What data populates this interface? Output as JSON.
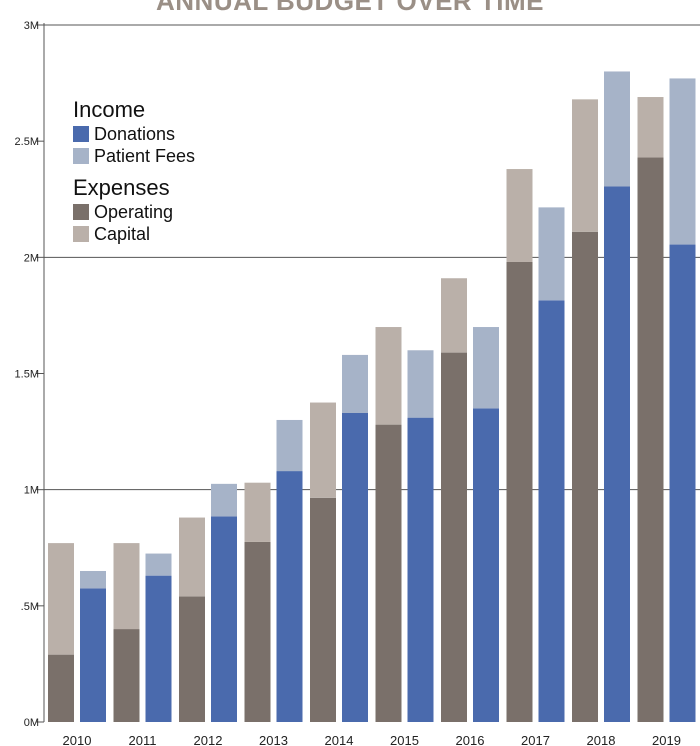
{
  "chart_data": {
    "type": "bar",
    "title": "ANNUAL BUDGET OVER TIME",
    "xlabel": "",
    "ylabel": "",
    "ylim": [
      0,
      3000000
    ],
    "grid": true,
    "legend_position": "top-left",
    "categories": [
      "2010",
      "2011",
      "2012",
      "2013",
      "2014",
      "2015",
      "2016",
      "2017",
      "2018",
      "2019"
    ],
    "y_ticks": [
      {
        "value": 0,
        "label": "0M"
      },
      {
        "value": 500000,
        "label": ".5M"
      },
      {
        "value": 1000000,
        "label": "1M"
      },
      {
        "value": 1500000,
        "label": "1.5M"
      },
      {
        "value": 2000000,
        "label": "2M"
      },
      {
        "value": 2500000,
        "label": "2.5M"
      },
      {
        "value": 3000000,
        "label": "3M"
      }
    ],
    "legend": {
      "income_title": "Income",
      "expenses_title": "Expenses"
    },
    "series": [
      {
        "name": "Operating",
        "group": "Expenses",
        "color": "#7a706a",
        "values": [
          290000,
          400000,
          540000,
          775000,
          965000,
          1280000,
          1590000,
          1980000,
          2110000,
          2430000
        ]
      },
      {
        "name": "Capital",
        "group": "Expenses",
        "color": "#bab0a9",
        "values": [
          480000,
          370000,
          340000,
          255000,
          410000,
          420000,
          320000,
          400000,
          570000,
          260000
        ]
      },
      {
        "name": "Donations",
        "group": "Income",
        "color": "#4a6aad",
        "values": [
          575000,
          630000,
          885000,
          1080000,
          1330000,
          1310000,
          1350000,
          1815000,
          2305000,
          2055000
        ]
      },
      {
        "name": "Patient Fees",
        "group": "Income",
        "color": "#a6b3c8",
        "values": [
          75000,
          95000,
          140000,
          220000,
          250000,
          290000,
          350000,
          400000,
          495000,
          715000
        ]
      }
    ]
  }
}
